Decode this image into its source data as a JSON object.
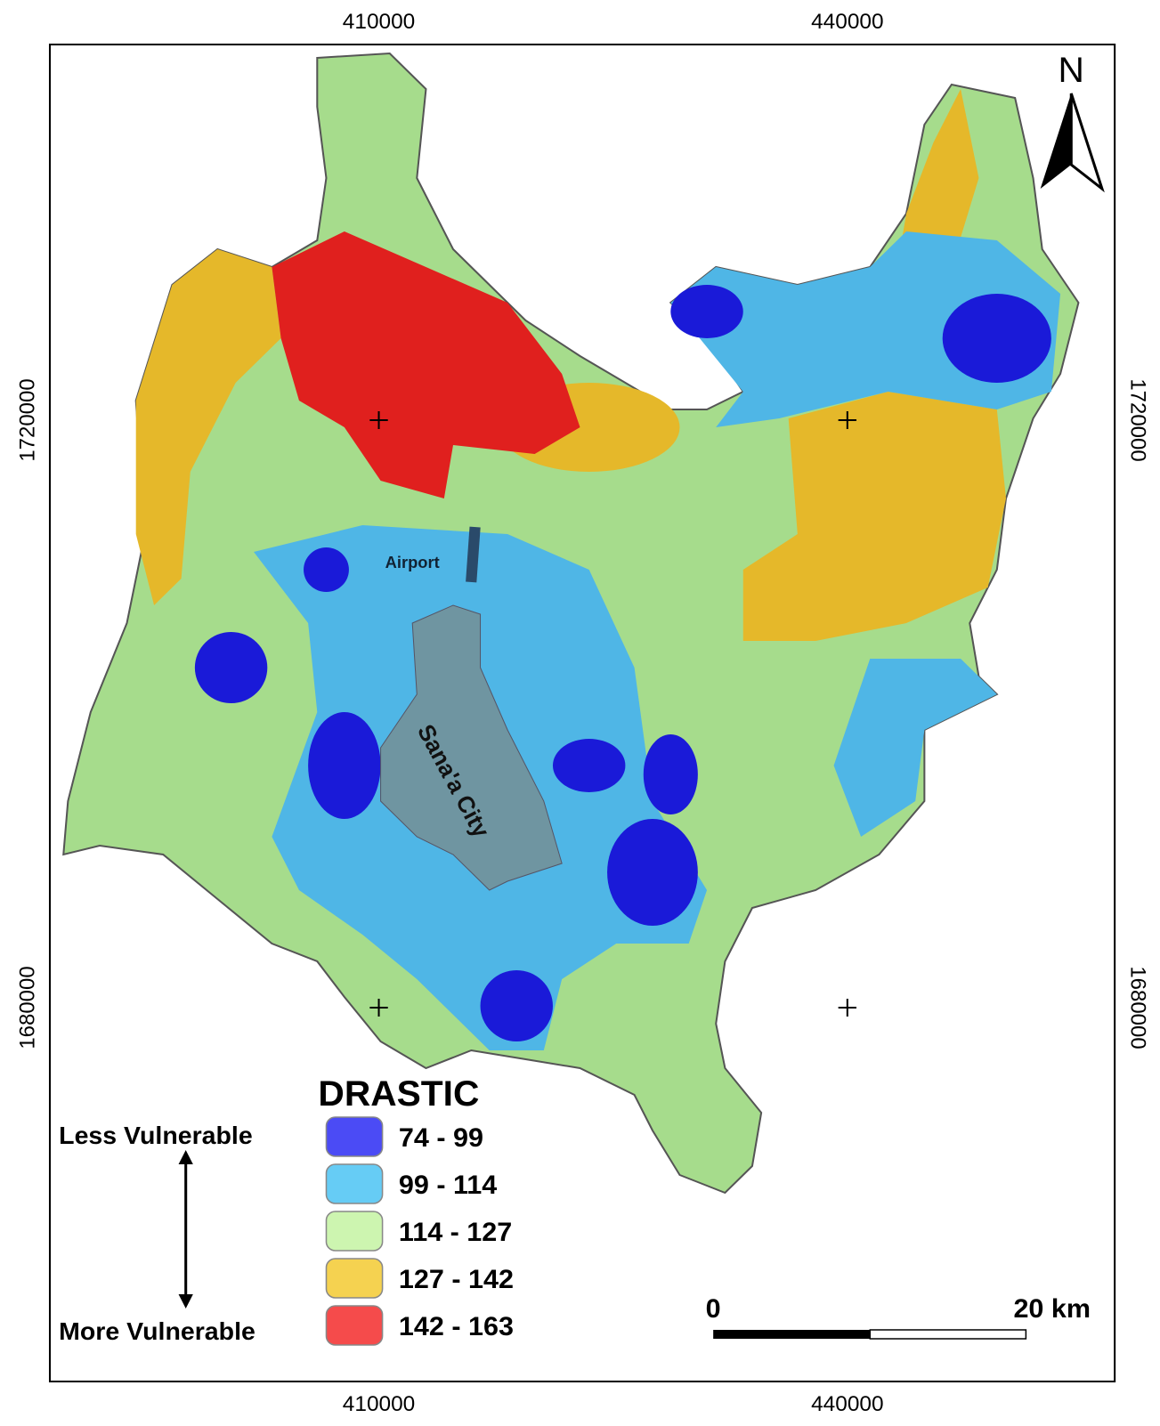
{
  "map": {
    "axes": {
      "top": [
        "410000",
        "440000"
      ],
      "bottom": [
        "410000",
        "440000"
      ],
      "left": [
        "1720000",
        "1680000"
      ],
      "right": [
        "1720000",
        "1680000"
      ]
    },
    "labels": {
      "airport": "Airport",
      "city": "Sana'a City"
    },
    "north": "N",
    "legend": {
      "title": "DRASTIC",
      "less": "Less Vulnerable",
      "more": "More Vulnerable",
      "items": [
        {
          "label": "74 - 99",
          "color": "#4b4bf5"
        },
        {
          "label": "99 - 114",
          "color": "#66ccf5"
        },
        {
          "label": "114 - 127",
          "color": "#cdf5b0"
        },
        {
          "label": "127 - 142",
          "color": "#f5d250"
        },
        {
          "label": "142 - 163",
          "color": "#f54b4b"
        }
      ]
    },
    "scale": {
      "start": "0",
      "end": "20",
      "unit": "km"
    }
  }
}
